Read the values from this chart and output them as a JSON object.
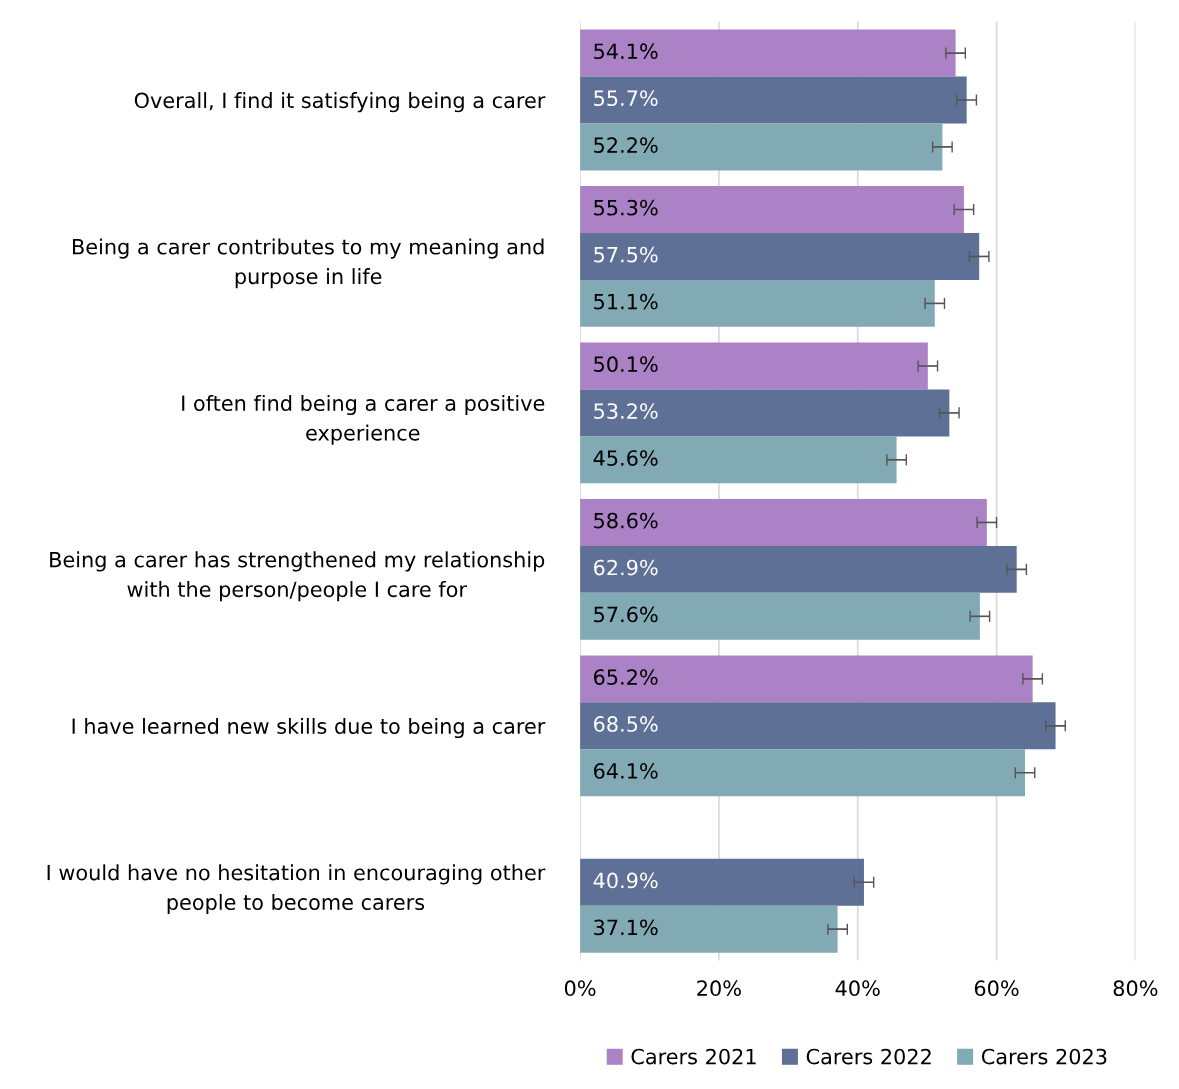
{
  "chart_data": {
    "type": "bar",
    "orientation": "horizontal",
    "categories": [
      "Overall, I find it satisfying being a carer",
      "Being a carer contributes to my meaning and purpose in life",
      "I often find being a carer a positive experience",
      "Being a carer has strengthened my relationship with the person/people I care for",
      "I have learned new skills due to being a carer",
      "I would have no hesitation in encouraging other people to become carers"
    ],
    "series": [
      {
        "name": "Carers 2021",
        "color": "#ab82c5",
        "values": [
          54.1,
          55.3,
          50.1,
          58.6,
          65.2,
          null
        ],
        "value_labels": [
          "54.1%",
          "55.3%",
          "50.1%",
          "58.6%",
          "65.2%",
          null
        ],
        "errors": [
          1.4,
          1.4,
          1.4,
          1.4,
          1.4,
          null
        ]
      },
      {
        "name": "Carers 2022",
        "color": "#5e7096",
        "values": [
          55.7,
          57.5,
          53.2,
          62.9,
          68.5,
          40.9
        ],
        "value_labels": [
          "55.7%",
          "57.5%",
          "53.2%",
          "62.9%",
          "68.5%",
          "40.9%"
        ],
        "errors": [
          1.4,
          1.4,
          1.4,
          1.4,
          1.4,
          1.4
        ]
      },
      {
        "name": "Carers 2023",
        "color": "#82aab5",
        "values": [
          52.2,
          51.1,
          45.6,
          57.6,
          64.1,
          37.1
        ],
        "value_labels": [
          "52.2%",
          "51.1%",
          "45.6%",
          "57.6%",
          "64.1%",
          "37.1%"
        ],
        "errors": [
          1.4,
          1.4,
          1.4,
          1.4,
          1.4,
          1.4
        ]
      }
    ],
    "xlim": [
      0,
      80
    ],
    "xticks": [
      {
        "value": 0,
        "label": "0%"
      },
      {
        "value": 20,
        "label": "20%"
      },
      {
        "value": 40,
        "label": "40%"
      },
      {
        "value": 60,
        "label": "60%"
      },
      {
        "value": 80,
        "label": "80%"
      }
    ],
    "grid": "x",
    "legend": "bottom"
  }
}
